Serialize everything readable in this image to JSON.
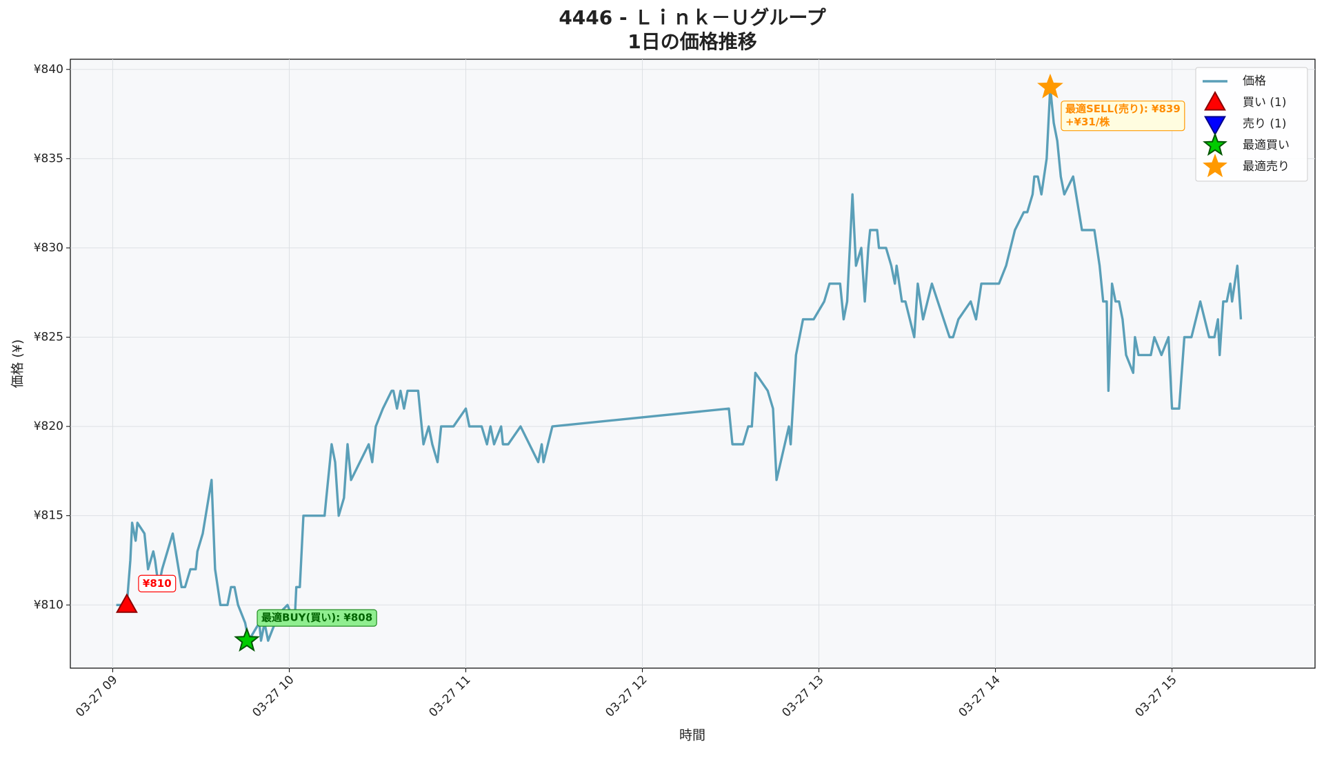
{
  "chart_data": {
    "type": "line",
    "title": "4446 - Ｌｉｎｋ－Ｕグループ",
    "subtitle": "1日の価格推移",
    "x_label": "時間",
    "y_label": "価格 (¥)",
    "xlim": [
      8.76,
      15.81
    ],
    "ylim": [
      806.46,
      840.57
    ],
    "xticks": [
      {
        "value": 9,
        "label": "03-27 09"
      },
      {
        "value": 10,
        "label": "03-27 10"
      },
      {
        "value": 11,
        "label": "03-27 11"
      },
      {
        "value": 12,
        "label": "03-27 12"
      },
      {
        "value": 13,
        "label": "03-27 13"
      },
      {
        "value": 14,
        "label": "03-27 14"
      },
      {
        "value": 15,
        "label": "03-27 15"
      }
    ],
    "yticks": [
      {
        "value": 810,
        "label": "¥810"
      },
      {
        "value": 815,
        "label": "¥815"
      },
      {
        "value": 820,
        "label": "¥820"
      },
      {
        "value": 825,
        "label": "¥825"
      },
      {
        "value": 830,
        "label": "¥830"
      },
      {
        "value": 835,
        "label": "¥835"
      },
      {
        "value": 840,
        "label": "¥840"
      }
    ],
    "grid": true,
    "legend": "upper right",
    "series": [
      {
        "name": "価格",
        "color": "#5a9fb8",
        "marker": "line",
        "x": [
          9.02,
          9.08,
          9.1,
          9.11,
          9.13,
          9.14,
          9.18,
          9.2,
          9.23,
          9.24,
          9.26,
          9.28,
          9.31,
          9.34,
          9.39,
          9.41,
          9.44,
          9.47,
          9.48,
          9.51,
          9.56,
          9.58,
          9.61,
          9.65,
          9.67,
          9.69,
          9.71,
          9.75,
          9.77,
          9.8,
          9.83,
          9.84,
          9.86,
          9.88,
          9.9,
          9.94,
          9.99,
          10.03,
          10.04,
          10.06,
          10.08,
          10.2,
          10.21,
          10.23,
          10.24,
          10.26,
          10.28,
          10.31,
          10.33,
          10.35,
          10.45,
          10.47,
          10.49,
          10.53,
          10.58,
          10.59,
          10.61,
          10.63,
          10.65,
          10.67,
          10.73,
          10.74,
          10.76,
          10.79,
          10.81,
          10.84,
          10.86,
          10.93,
          11.0,
          11.02,
          11.09,
          11.12,
          11.14,
          11.16,
          11.2,
          11.21,
          11.24,
          11.31,
          11.41,
          11.43,
          11.44,
          11.49,
          12.49,
          12.51,
          12.57,
          12.6,
          12.62,
          12.64,
          12.71,
          12.74,
          12.76,
          12.83,
          12.84,
          12.87,
          12.91,
          12.97,
          13.03,
          13.06,
          13.12,
          13.14,
          13.16,
          13.19,
          13.21,
          13.24,
          13.26,
          13.28,
          13.29,
          13.33,
          13.34,
          13.38,
          13.41,
          13.43,
          13.44,
          13.47,
          13.49,
          13.54,
          13.56,
          13.59,
          13.64,
          13.74,
          13.76,
          13.79,
          13.86,
          13.89,
          13.92,
          14.02,
          14.06,
          14.11,
          14.16,
          14.18,
          14.21,
          14.22,
          14.24,
          14.26,
          14.29,
          14.31,
          14.33,
          14.35,
          14.37,
          14.39,
          14.44,
          14.49,
          14.56,
          14.59,
          14.61,
          14.63,
          14.64,
          14.66,
          14.68,
          14.7,
          14.72,
          14.74,
          14.78,
          14.79,
          14.81,
          14.88,
          14.9,
          14.94,
          14.98,
          15.0,
          15.04,
          15.07,
          15.11,
          15.16,
          15.21,
          15.24,
          15.26,
          15.27,
          15.29,
          15.31,
          15.33,
          15.34,
          15.37,
          15.39
        ],
        "values": [
          810,
          810,
          812.5,
          814.6,
          813.6,
          814.6,
          814,
          812,
          813,
          812.5,
          811,
          812,
          813,
          814,
          811,
          811,
          812,
          812,
          813,
          814,
          817,
          812,
          810,
          810,
          811,
          811,
          810,
          809,
          808,
          808.5,
          809,
          808,
          809,
          808,
          808.5,
          809.5,
          810,
          809,
          811,
          811,
          815,
          815,
          816,
          818,
          819,
          818,
          815,
          816,
          819,
          817,
          819,
          818,
          820,
          821,
          822,
          822,
          821,
          822,
          821,
          822,
          822,
          821,
          819,
          820,
          819,
          818,
          820,
          820,
          821,
          820,
          820,
          819,
          820,
          819,
          820,
          819,
          819,
          820,
          818,
          819,
          818,
          820,
          821,
          819,
          819,
          820,
          820,
          823,
          822,
          821,
          817,
          820,
          819,
          824,
          826,
          826,
          827,
          828,
          828,
          826,
          827,
          833,
          829,
          830,
          827,
          830,
          831,
          831,
          830,
          830,
          829,
          828,
          829,
          827,
          827,
          825,
          828,
          826,
          828,
          825,
          825,
          826,
          827,
          826,
          828,
          828,
          829,
          831,
          832,
          832,
          833,
          834,
          834,
          833,
          835,
          839,
          837,
          836,
          834,
          833,
          834,
          831,
          831,
          829,
          827,
          827,
          822,
          828,
          827,
          827,
          826,
          824,
          823,
          825,
          824,
          824,
          825,
          824,
          825,
          821,
          821,
          825,
          825,
          827,
          825,
          825,
          826,
          824,
          827,
          827,
          828,
          827,
          829,
          826
        ]
      },
      {
        "name": "買い (1)",
        "color": "#ff0000",
        "marker": "triangle-up",
        "x": [
          9.08
        ],
        "values": [
          810
        ],
        "labels": [
          "¥810"
        ]
      },
      {
        "name": "売り (1)",
        "color": "#0000ff",
        "marker": "triangle-down",
        "x": [],
        "values": []
      },
      {
        "name": "最適買い",
        "color": "#00cc00",
        "marker": "star",
        "x": [
          9.76
        ],
        "values": [
          808
        ],
        "labels": [
          "最適BUY(買い): ¥808"
        ]
      },
      {
        "name": "最適売り",
        "color": "#ff9900",
        "marker": "star",
        "x": [
          14.31
        ],
        "values": [
          839
        ],
        "labels": [
          "最適SELL(売り): ¥839",
          "+¥31/株"
        ]
      }
    ]
  }
}
